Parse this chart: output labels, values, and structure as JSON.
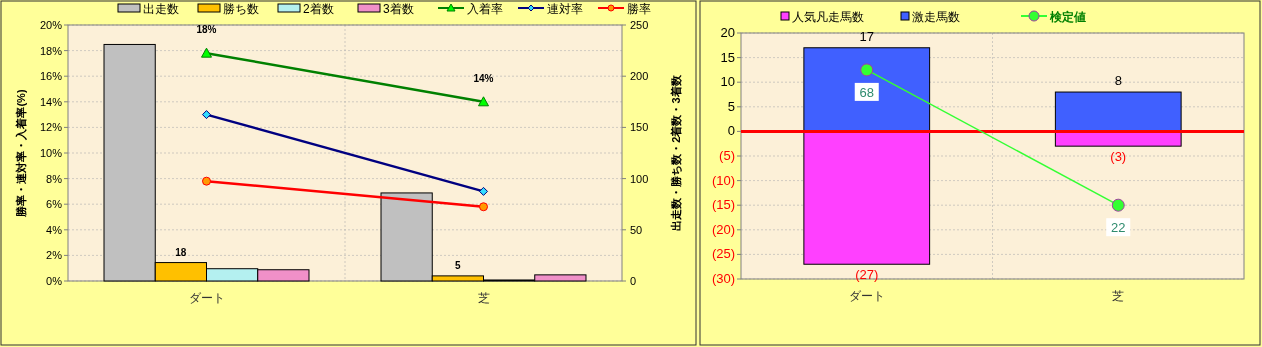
{
  "chart_data": [
    {
      "type": "bar",
      "categories": [
        "ダート",
        "芝"
      ],
      "ylabel": "勝率・連対率・入着率(%)",
      "y2label": "出走数・勝ち数・2着数・3着数",
      "series": [
        {
          "name": "出走数",
          "type": "bar",
          "axis": "y2",
          "color": "#c0c0c0",
          "values": [
            231,
            86
          ]
        },
        {
          "name": "勝ち数",
          "type": "bar",
          "axis": "y2",
          "color": "#ffc000",
          "values": [
            18,
            5
          ],
          "value_labels": [
            "18",
            "5"
          ]
        },
        {
          "name": "2着数",
          "type": "bar",
          "axis": "y2",
          "color": "#b4f0f0",
          "values": [
            12,
            1
          ]
        },
        {
          "name": "3着数",
          "type": "bar",
          "axis": "y2",
          "color": "#f090c8",
          "values": [
            11,
            6
          ]
        },
        {
          "name": "入着率",
          "type": "line",
          "color": "#008000",
          "marker": "triangle",
          "values": [
            17.8,
            14.0
          ],
          "value_labels": [
            "18%",
            "14%"
          ]
        },
        {
          "name": "連対率",
          "type": "line",
          "color": "#000080",
          "marker": "diamond",
          "values": [
            13.0,
            7.0
          ]
        },
        {
          "name": "勝率",
          "type": "line",
          "color": "#ff0000",
          "marker": "circle",
          "values": [
            7.8,
            5.8
          ]
        }
      ],
      "ylim": [
        0,
        20
      ],
      "yticks": [
        {
          "value": 0,
          "label": "0%"
        },
        {
          "value": 2,
          "label": "2%"
        },
        {
          "value": 4,
          "label": "4%"
        },
        {
          "value": 6,
          "label": "6%"
        },
        {
          "value": 8,
          "label": "8%"
        },
        {
          "value": 10,
          "label": "10%"
        },
        {
          "value": 12,
          "label": "12%"
        },
        {
          "value": 14,
          "label": "14%"
        },
        {
          "value": 16,
          "label": "16%"
        },
        {
          "value": 18,
          "label": "18%"
        },
        {
          "value": 20,
          "label": "20%"
        }
      ],
      "y2lim": [
        0,
        250
      ],
      "y2ticks": [
        0,
        50,
        100,
        150,
        200,
        250
      ],
      "grid": true,
      "legend": "top"
    },
    {
      "type": "bar",
      "categories": [
        "ダート",
        "芝"
      ],
      "stacked": true,
      "series": [
        {
          "name": "人気凡走馬数",
          "type": "bar",
          "color": "#ff40ff",
          "values": [
            -27,
            -3
          ],
          "value_labels": [
            "(27)",
            "(3)"
          ]
        },
        {
          "name": "激走馬数",
          "type": "bar",
          "color": "#4060ff",
          "values": [
            17,
            8
          ],
          "value_labels": [
            "17",
            "8"
          ]
        },
        {
          "name": "検定値",
          "type": "line",
          "color": "#33ff33",
          "marker": "circle",
          "values": [
            12.5,
            -15
          ]
        }
      ],
      "annotations": [
        {
          "text": "68",
          "x": "ダート",
          "y": 12.5
        },
        {
          "text": "22",
          "x": "芝",
          "y": -15
        }
      ],
      "ylim": [
        -30,
        20
      ],
      "yticks": [
        {
          "value": -30,
          "label": "(30)"
        },
        {
          "value": -25,
          "label": "(25)"
        },
        {
          "value": -20,
          "label": "(20)"
        },
        {
          "value": -15,
          "label": "(15)"
        },
        {
          "value": -10,
          "label": "(10)"
        },
        {
          "value": -5,
          "label": "(5)"
        },
        0,
        5,
        10,
        15,
        20
      ],
      "ref_lines": [
        {
          "axis": "y",
          "value": 0,
          "color": "#ff0000"
        }
      ],
      "grid": true,
      "legend": "top"
    }
  ]
}
